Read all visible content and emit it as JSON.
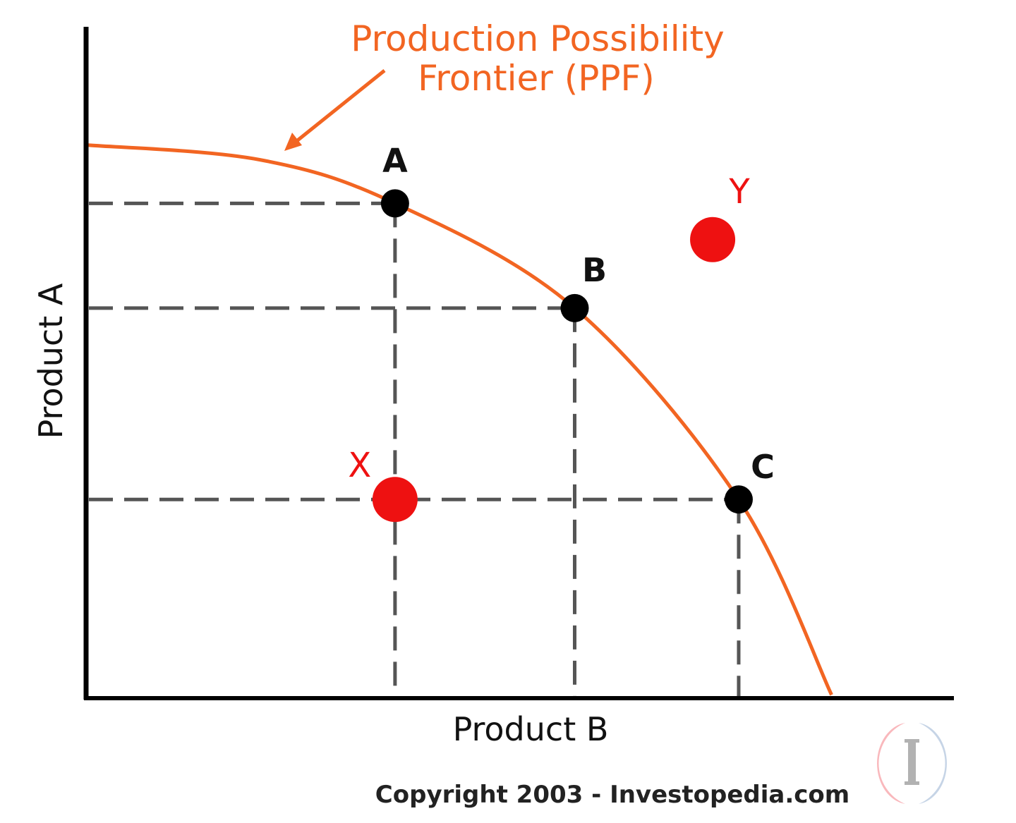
{
  "chart_data": {
    "type": "line",
    "title_line1": "Production Possibility",
    "title_line2": "Frontier (PPF)",
    "xlabel": "Product B",
    "ylabel": "Product A",
    "xlim": [
      0,
      100
    ],
    "ylim": [
      0,
      100
    ],
    "grid": false,
    "curve": {
      "name": "Production Possibility Frontier (PPF)",
      "color": "#f26522",
      "points": [
        [
          0,
          82.4
        ],
        [
          20,
          80.2
        ],
        [
          35.6,
          73.7
        ],
        [
          56.3,
          58.1
        ],
        [
          75.2,
          29.6
        ],
        [
          85.9,
          0.5
        ]
      ]
    },
    "frontier_points": [
      {
        "label": "A",
        "x": 35.6,
        "y": 73.7
      },
      {
        "label": "B",
        "x": 56.3,
        "y": 58.1
      },
      {
        "label": "C",
        "x": 75.2,
        "y": 29.6
      }
    ],
    "other_points": [
      {
        "label": "X",
        "x": 35.6,
        "y": 29.6
      },
      {
        "label": "Y",
        "x": 72.2,
        "y": 68.3
      }
    ],
    "colors": {
      "frontier": "#f26522",
      "on_frontier_point": "#000000",
      "off_frontier_point": "#ee1111",
      "guide": "#555555"
    }
  },
  "footer": {
    "copyright": "Copyright 2003 - Investopedia.com",
    "logo_letter": "I"
  }
}
